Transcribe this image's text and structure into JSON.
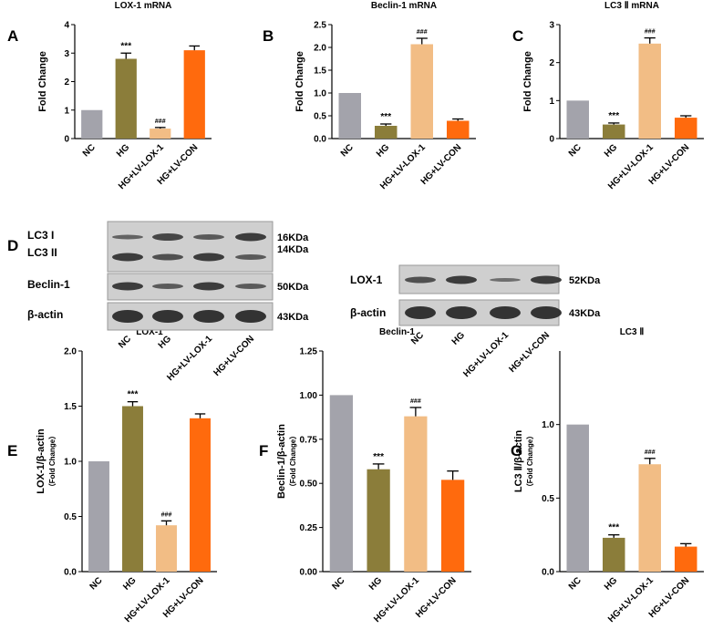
{
  "chart_data": [
    {
      "type": "bar",
      "letter": "A",
      "title": "LOX-1 mRNA",
      "ylabel": "Fold Change",
      "categories": [
        "NC",
        "HG",
        "HG+LV-LOX-1",
        "HG+LV-CON"
      ],
      "values": [
        1,
        2.8,
        0.35,
        3.1
      ],
      "errors": [
        null,
        0.2,
        0.04,
        0.15
      ],
      "colors": [
        "#a3a3ab",
        "#8b7d3a",
        "#f2bd85",
        "#ff6a0d"
      ],
      "annotations": {
        "HG": "***",
        "HG+LV-LOX-1": "###"
      },
      "ylim": [
        0,
        4
      ],
      "yticks": [
        0,
        1,
        2,
        3,
        4
      ]
    },
    {
      "type": "bar",
      "letter": "B",
      "title": "Beclin-1 mRNA",
      "ylabel": "Fold Change",
      "categories": [
        "NC",
        "HG",
        "HG+LV-LOX-1",
        "HG+LV-CON"
      ],
      "values": [
        1,
        0.28,
        2.07,
        0.39
      ],
      "errors": [
        null,
        0.04,
        0.13,
        0.04
      ],
      "colors": [
        "#a3a3ab",
        "#8b7d3a",
        "#f2bd85",
        "#ff6a0d"
      ],
      "annotations": {
        "HG": "***",
        "HG+LV-LOX-1": "###"
      },
      "ylim": [
        0,
        2.5
      ],
      "yticks": [
        {
          "value": 0,
          "label": "0.0"
        },
        0.5,
        {
          "value": 1,
          "label": "1.0"
        },
        1.5,
        {
          "value": 2,
          "label": "2.0"
        },
        2.5
      ]
    },
    {
      "type": "bar",
      "letter": "C",
      "title": "LC3 Ⅱ mRNA",
      "ylabel": "Fold Change",
      "categories": [
        "NC",
        "HG",
        "HG+LV-LOX-1",
        "HG+LV-CON"
      ],
      "values": [
        1,
        0.37,
        2.5,
        0.55
      ],
      "errors": [
        null,
        0.04,
        0.15,
        0.05
      ],
      "colors": [
        "#a3a3ab",
        "#8b7d3a",
        "#f2bd85",
        "#ff6a0d"
      ],
      "annotations": {
        "HG": "***",
        "HG+LV-LOX-1": "###"
      },
      "ylim": [
        0,
        3
      ],
      "yticks": [
        0,
        1,
        2,
        3
      ]
    },
    {
      "type": "bar",
      "letter": "E",
      "title": "LOX-1",
      "ylabel": "LOX-1/β-actin",
      "ylabel_sub": "（Fold Change）",
      "categories": [
        "NC",
        "HG",
        "HG+LV-LOX-1",
        "HG+LV-CON"
      ],
      "values": [
        1,
        1.5,
        0.42,
        1.39
      ],
      "errors": [
        null,
        0.04,
        0.04,
        0.04
      ],
      "colors": [
        "#a3a3ab",
        "#8b7d3a",
        "#f2bd85",
        "#ff6a0d"
      ],
      "annotations": {
        "HG": "***",
        "HG+LV-LOX-1": "###"
      },
      "ylim": [
        0,
        2
      ],
      "yticks": [
        {
          "value": 0,
          "label": "0.0"
        },
        0.5,
        {
          "value": 1,
          "label": "1.0"
        },
        1.5,
        {
          "value": 2,
          "label": "2.0"
        }
      ]
    },
    {
      "type": "bar",
      "letter": "F",
      "title": "Beclin-1",
      "ylabel": "Beclin-1/β-actin",
      "ylabel_sub": "（Fold Change）",
      "categories": [
        "NC",
        "HG",
        "HG+LV-LOX-1",
        "HG+LV-CON"
      ],
      "values": [
        1,
        0.58,
        0.88,
        0.52
      ],
      "errors": [
        null,
        0.03,
        0.05,
        0.05
      ],
      "colors": [
        "#a3a3ab",
        "#8b7d3a",
        "#f2bd85",
        "#ff6a0d"
      ],
      "annotations": {
        "HG": "***",
        "HG+LV-LOX-1": "###"
      },
      "ylim": [
        0,
        1.25
      ],
      "yticks": [
        {
          "value": 0,
          "label": "0.00"
        },
        {
          "value": 0.25,
          "label": "0.25"
        },
        {
          "value": 0.5,
          "label": "0.50"
        },
        {
          "value": 0.75,
          "label": "0.75"
        },
        {
          "value": 1,
          "label": "1.00"
        },
        {
          "value": 1.25,
          "label": "1.25"
        }
      ]
    },
    {
      "type": "bar",
      "letter": "G",
      "title": "LC3 Ⅱ",
      "ylabel": "LC3 Ⅱ/β-actin",
      "ylabel_sub": "（Fold Change）",
      "categories": [
        "NC",
        "HG",
        "HG+LV-LOX-1",
        "HG+LV-CON"
      ],
      "values": [
        1,
        0.23,
        0.73,
        0.17
      ],
      "errors": [
        null,
        0.02,
        0.04,
        0.02
      ],
      "colors": [
        "#a3a3ab",
        "#8b7d3a",
        "#f2bd85",
        "#ff6a0d"
      ],
      "annotations": {
        "HG": "***",
        "HG+LV-LOX-1": "###"
      },
      "ylim": [
        0,
        1.5
      ],
      "yticks": [
        {
          "value": 0,
          "label": "0.0"
        },
        0.5,
        {
          "value": 1,
          "label": "1.0"
        }
      ]
    }
  ],
  "blots": {
    "letter": "D",
    "left": {
      "rows": [
        "LC3 I",
        "LC3 II",
        "Beclin-1",
        "β-actin"
      ],
      "sizes": [
        "16KDa",
        "14KDa",
        "50KDa",
        "43KDa"
      ],
      "lanes": [
        "NC",
        "HG",
        "HG+LV-LOX-1",
        "HG+LV-CON"
      ]
    },
    "right": {
      "rows": [
        "LOX-1",
        "β-actin"
      ],
      "sizes": [
        "52KDa",
        "43KDa"
      ],
      "lanes": [
        "NC",
        "HG",
        "HG+LV-LOX-1",
        "HG+LV-CON"
      ]
    }
  }
}
